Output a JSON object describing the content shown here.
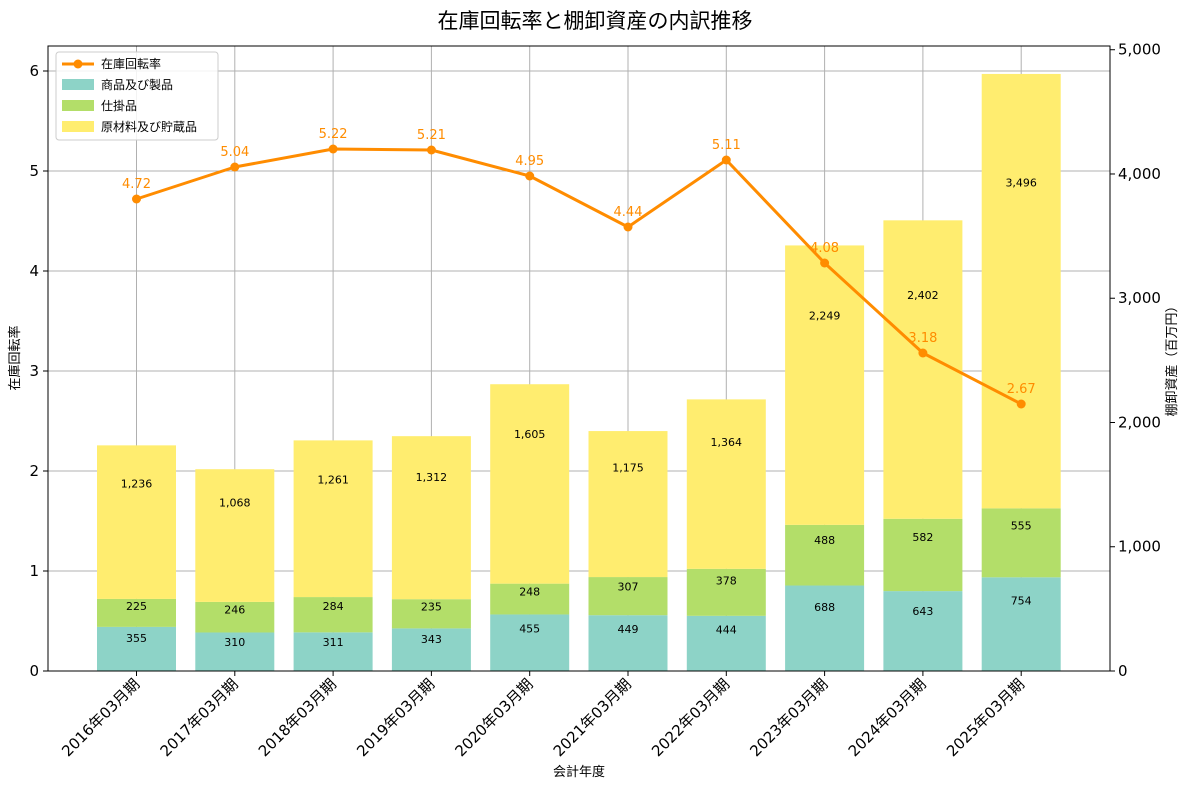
{
  "chart_data": {
    "type": "bar",
    "title": "在庫回転率と棚卸資産の内訳推移",
    "xlabel": "会計年度",
    "ylabel_left": "在庫回転率",
    "ylabel_right": "棚卸資産（百万円）",
    "categories": [
      "2016年03月期",
      "2017年03月期",
      "2018年03月期",
      "2019年03月期",
      "2020年03月期",
      "2021年03月期",
      "2022年03月期",
      "2023年03月期",
      "2024年03月期",
      "2025年03月期"
    ],
    "ylim_left": [
      0,
      6.25
    ],
    "ylim_right": [
      0,
      5030
    ],
    "yticks_left": [
      "0",
      "1",
      "2",
      "3",
      "4",
      "5",
      "6"
    ],
    "yticks_right": [
      "0",
      "1,000",
      "2,000",
      "3,000",
      "4,000",
      "5,000"
    ],
    "yticks_left_values": [
      0,
      1,
      2,
      3,
      4,
      5,
      6
    ],
    "yticks_right_values": [
      0,
      1000,
      2000,
      3000,
      4000,
      5000
    ],
    "grid": true,
    "legend_position": "top-left",
    "stacked_series": [
      {
        "name": "商品及び製品",
        "color": "#8dd3c7",
        "values": [
          355,
          310,
          311,
          343,
          455,
          449,
          444,
          688,
          643,
          754
        ],
        "labels": [
          "355",
          "310",
          "311",
          "343",
          "455",
          "449",
          "444",
          "688",
          "643",
          "754"
        ]
      },
      {
        "name": "仕掛品",
        "color": "#b3de69",
        "values": [
          225,
          246,
          284,
          235,
          248,
          307,
          378,
          488,
          582,
          555
        ],
        "labels": [
          "225",
          "246",
          "284",
          "235",
          "248",
          "307",
          "378",
          "488",
          "582",
          "555"
        ]
      },
      {
        "name": "原材料及び貯蔵品",
        "color": "#ffed6f",
        "values": [
          1236,
          1068,
          1261,
          1312,
          1605,
          1175,
          1364,
          2249,
          2402,
          3496
        ],
        "labels": [
          "1,236",
          "1,068",
          "1,261",
          "1,312",
          "1,605",
          "1,175",
          "1,364",
          "2,249",
          "2,402",
          "3,496"
        ]
      }
    ],
    "line_series": {
      "name": "在庫回転率",
      "color": "#ff8c00",
      "values": [
        4.72,
        5.04,
        5.22,
        5.21,
        4.95,
        4.44,
        5.11,
        4.08,
        3.18,
        2.67
      ],
      "labels": [
        "4.72",
        "5.04",
        "5.22",
        "5.21",
        "4.95",
        "4.44",
        "5.11",
        "4.08",
        "3.18",
        "2.67"
      ]
    }
  }
}
